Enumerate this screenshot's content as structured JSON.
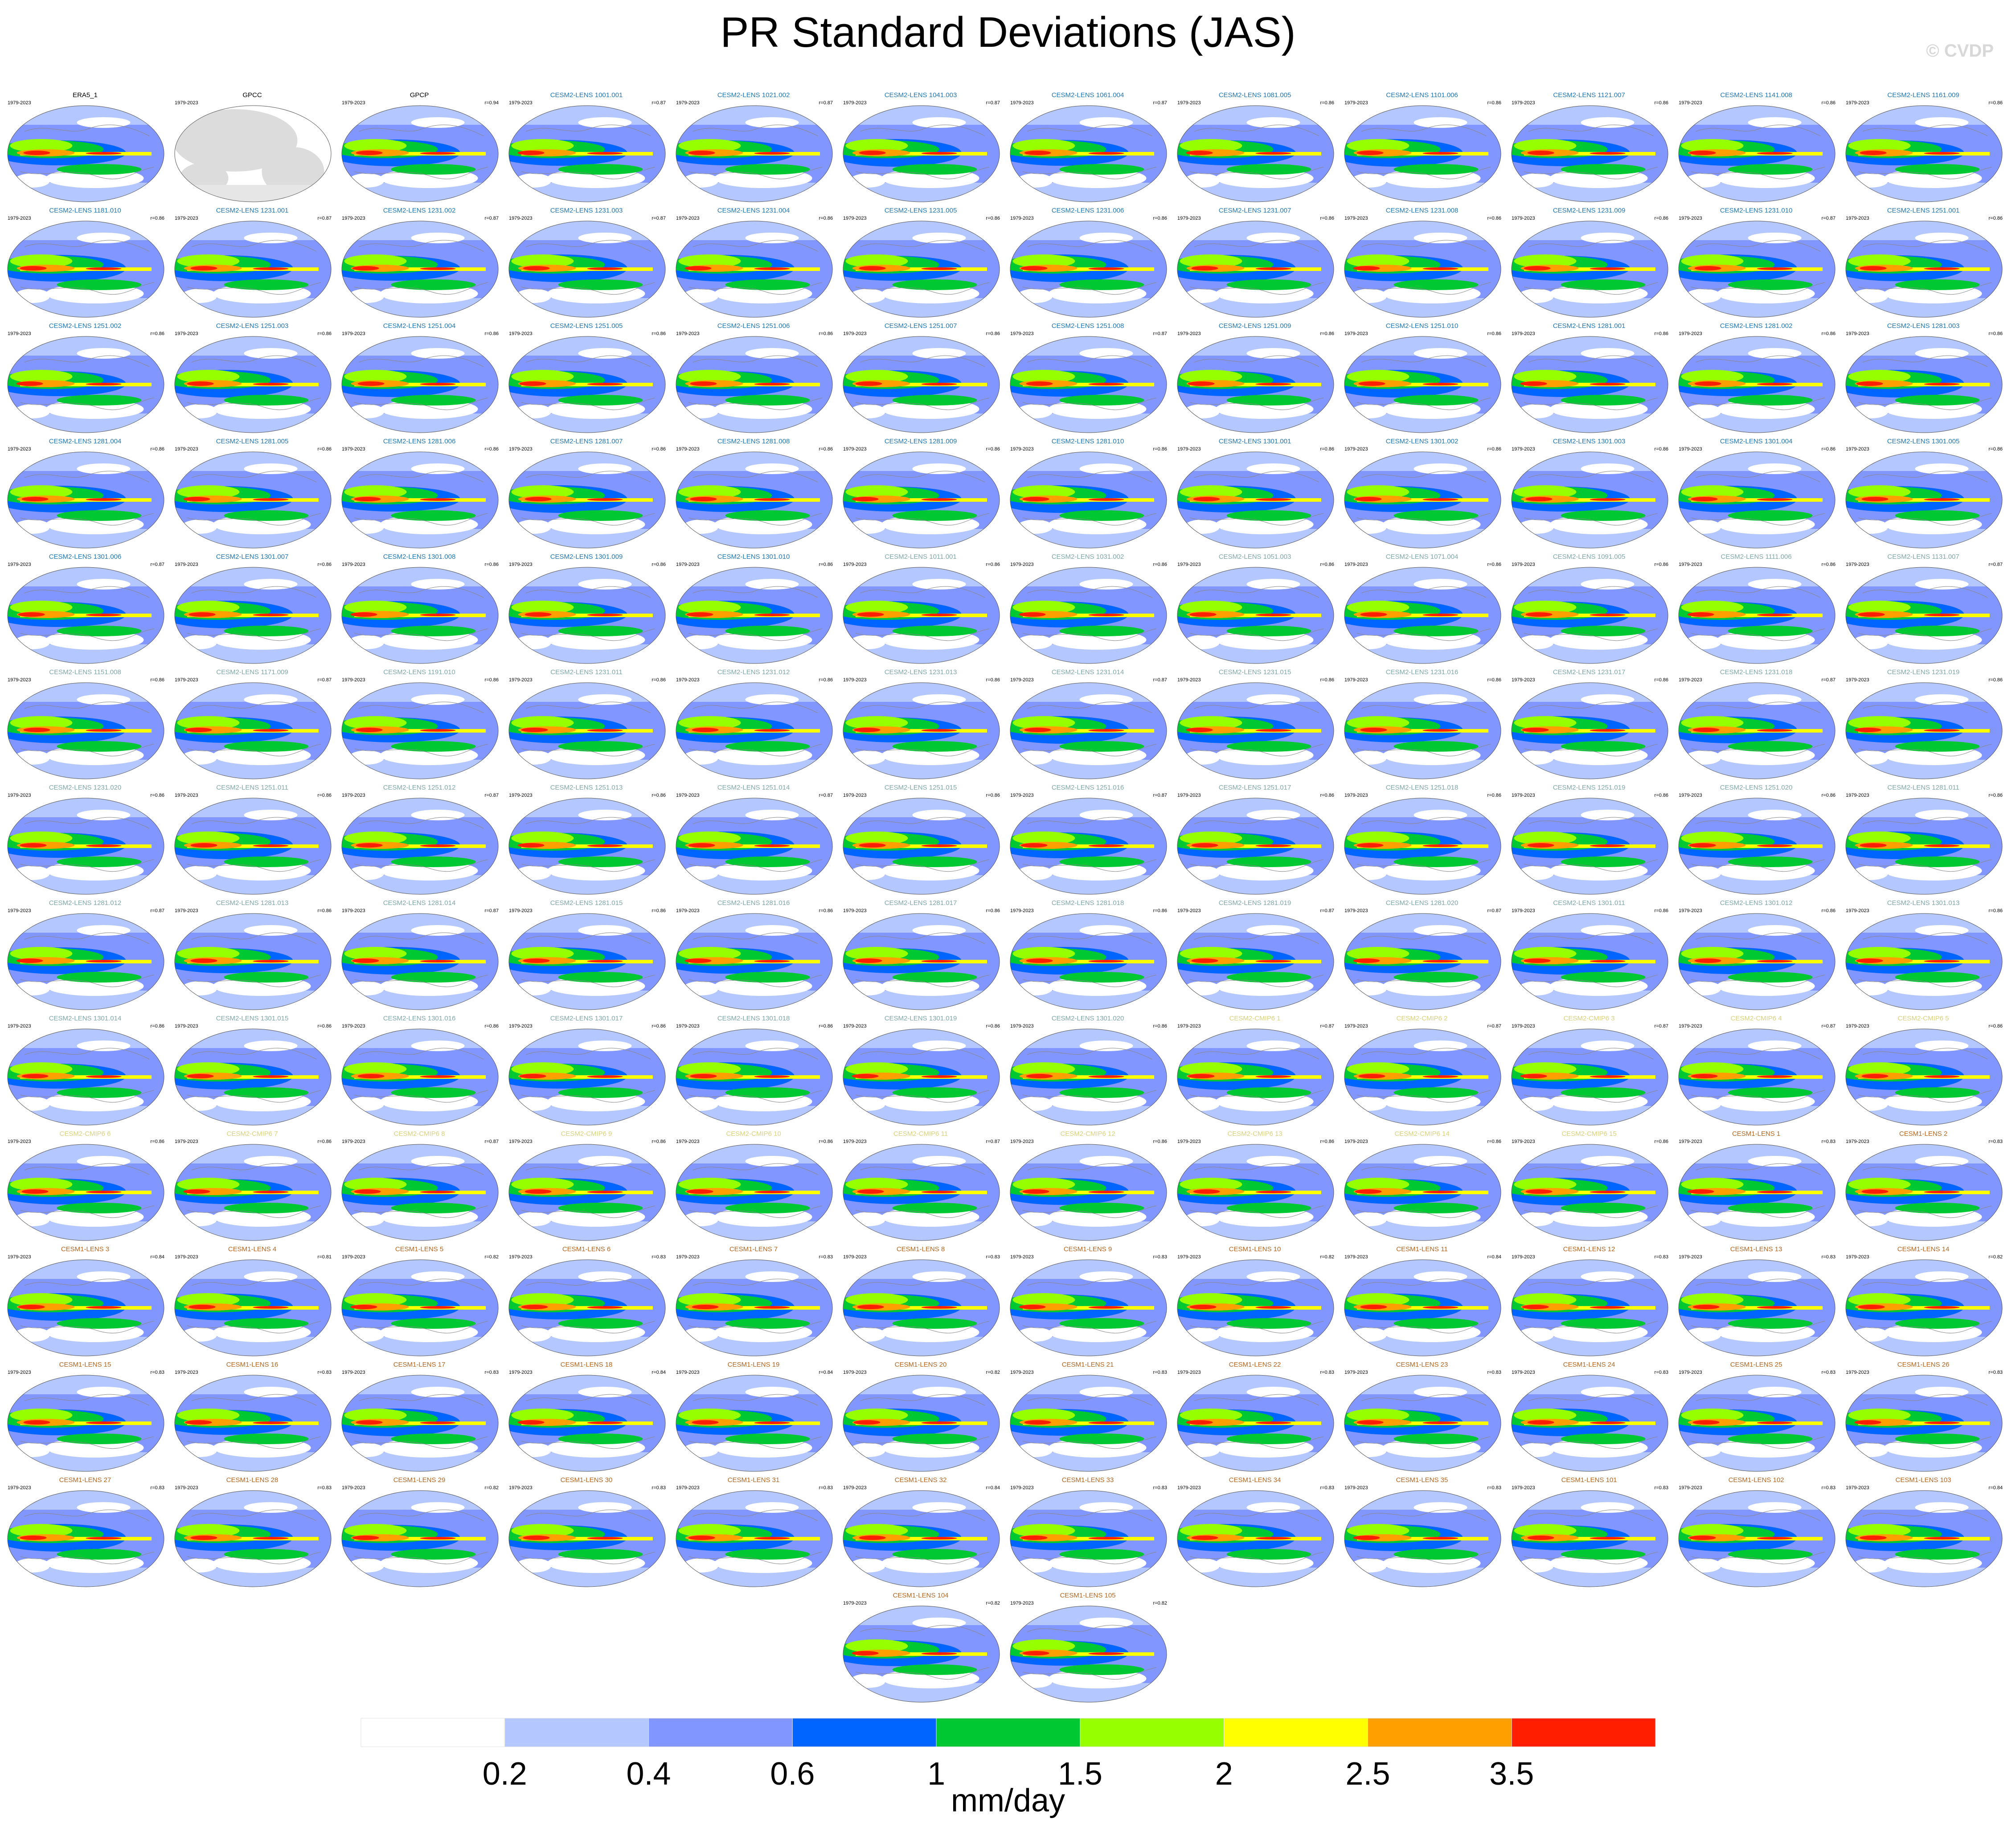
{
  "title": "PR Standard Deviations (JAS)",
  "watermark": "© CVDP",
  "chart_data": {
    "type": "heatmap",
    "title": "PR Standard Deviations (JAS)",
    "description_of_maps": "Global Robinson-projection maps of July-September precipitation standard deviation, one per dataset/ensemble member",
    "years": "1979-2023",
    "panels": [
      {
        "name": "ERA5_1",
        "r": "",
        "group": "obs"
      },
      {
        "name": "GPCC",
        "r": "",
        "group": "obs"
      },
      {
        "name": "GPCP",
        "r": "r=0.94",
        "group": "obs"
      },
      {
        "name": "CESM2-LENS 1001.001",
        "r": "r=0.87",
        "group": "cesm2"
      },
      {
        "name": "CESM2-LENS 1021.002",
        "r": "r=0.87",
        "group": "cesm2"
      },
      {
        "name": "CESM2-LENS 1041.003",
        "r": "r=0.87",
        "group": "cesm2"
      },
      {
        "name": "CESM2-LENS 1061.004",
        "r": "r=0.87",
        "group": "cesm2"
      },
      {
        "name": "CESM2-LENS 1081.005",
        "r": "r=0.86",
        "group": "cesm2"
      },
      {
        "name": "CESM2-LENS 1101.006",
        "r": "r=0.86",
        "group": "cesm2"
      },
      {
        "name": "CESM2-LENS 1121.007",
        "r": "r=0.86",
        "group": "cesm2"
      },
      {
        "name": "CESM2-LENS 1141.008",
        "r": "r=0.86",
        "group": "cesm2"
      },
      {
        "name": "CESM2-LENS 1161.009",
        "r": "r=0.86",
        "group": "cesm2"
      },
      {
        "name": "CESM2-LENS 1181.010",
        "r": "r=0.86",
        "group": "cesm2"
      },
      {
        "name": "CESM2-LENS 1231.001",
        "r": "r=0.87",
        "group": "cesm2"
      },
      {
        "name": "CESM2-LENS 1231.002",
        "r": "r=0.87",
        "group": "cesm2"
      },
      {
        "name": "CESM2-LENS 1231.003",
        "r": "r=0.87",
        "group": "cesm2"
      },
      {
        "name": "CESM2-LENS 1231.004",
        "r": "r=0.86",
        "group": "cesm2"
      },
      {
        "name": "CESM2-LENS 1231.005",
        "r": "r=0.86",
        "group": "cesm2"
      },
      {
        "name": "CESM2-LENS 1231.006",
        "r": "r=0.86",
        "group": "cesm2"
      },
      {
        "name": "CESM2-LENS 1231.007",
        "r": "r=0.86",
        "group": "cesm2"
      },
      {
        "name": "CESM2-LENS 1231.008",
        "r": "r=0.86",
        "group": "cesm2"
      },
      {
        "name": "CESM2-LENS 1231.009",
        "r": "r=0.86",
        "group": "cesm2"
      },
      {
        "name": "CESM2-LENS 1231.010",
        "r": "r=0.87",
        "group": "cesm2"
      },
      {
        "name": "CESM2-LENS 1251.001",
        "r": "r=0.86",
        "group": "cesm2"
      },
      {
        "name": "CESM2-LENS 1251.002",
        "r": "r=0.86",
        "group": "cesm2"
      },
      {
        "name": "CESM2-LENS 1251.003",
        "r": "r=0.86",
        "group": "cesm2"
      },
      {
        "name": "CESM2-LENS 1251.004",
        "r": "r=0.86",
        "group": "cesm2"
      },
      {
        "name": "CESM2-LENS 1251.005",
        "r": "r=0.86",
        "group": "cesm2"
      },
      {
        "name": "CESM2-LENS 1251.006",
        "r": "r=0.86",
        "group": "cesm2"
      },
      {
        "name": "CESM2-LENS 1251.007",
        "r": "r=0.86",
        "group": "cesm2"
      },
      {
        "name": "CESM2-LENS 1251.008",
        "r": "r=0.87",
        "group": "cesm2"
      },
      {
        "name": "CESM2-LENS 1251.009",
        "r": "r=0.86",
        "group": "cesm2"
      },
      {
        "name": "CESM2-LENS 1251.010",
        "r": "r=0.86",
        "group": "cesm2"
      },
      {
        "name": "CESM2-LENS 1281.001",
        "r": "r=0.86",
        "group": "cesm2"
      },
      {
        "name": "CESM2-LENS 1281.002",
        "r": "r=0.86",
        "group": "cesm2"
      },
      {
        "name": "CESM2-LENS 1281.003",
        "r": "r=0.86",
        "group": "cesm2"
      },
      {
        "name": "CESM2-LENS 1281.004",
        "r": "r=0.86",
        "group": "cesm2"
      },
      {
        "name": "CESM2-LENS 1281.005",
        "r": "r=0.86",
        "group": "cesm2"
      },
      {
        "name": "CESM2-LENS 1281.006",
        "r": "r=0.86",
        "group": "cesm2"
      },
      {
        "name": "CESM2-LENS 1281.007",
        "r": "r=0.86",
        "group": "cesm2"
      },
      {
        "name": "CESM2-LENS 1281.008",
        "r": "r=0.86",
        "group": "cesm2"
      },
      {
        "name": "CESM2-LENS 1281.009",
        "r": "r=0.86",
        "group": "cesm2"
      },
      {
        "name": "CESM2-LENS 1281.010",
        "r": "r=0.86",
        "group": "cesm2"
      },
      {
        "name": "CESM2-LENS 1301.001",
        "r": "r=0.86",
        "group": "cesm2"
      },
      {
        "name": "CESM2-LENS 1301.002",
        "r": "r=0.86",
        "group": "cesm2"
      },
      {
        "name": "CESM2-LENS 1301.003",
        "r": "r=0.86",
        "group": "cesm2"
      },
      {
        "name": "CESM2-LENS 1301.004",
        "r": "r=0.86",
        "group": "cesm2"
      },
      {
        "name": "CESM2-LENS 1301.005",
        "r": "r=0.86",
        "group": "cesm2"
      },
      {
        "name": "CESM2-LENS 1301.006",
        "r": "r=0.87",
        "group": "cesm2"
      },
      {
        "name": "CESM2-LENS 1301.007",
        "r": "r=0.86",
        "group": "cesm2"
      },
      {
        "name": "CESM2-LENS 1301.008",
        "r": "r=0.86",
        "group": "cesm2"
      },
      {
        "name": "CESM2-LENS 1301.009",
        "r": "r=0.86",
        "group": "cesm2"
      },
      {
        "name": "CESM2-LENS 1301.010",
        "r": "r=0.86",
        "group": "cesm2"
      },
      {
        "name": "CESM2-LENS 1011.001",
        "r": "r=0.86",
        "group": "cesm2b"
      },
      {
        "name": "CESM2-LENS 1031.002",
        "r": "r=0.86",
        "group": "cesm2b"
      },
      {
        "name": "CESM2-LENS 1051.003",
        "r": "r=0.86",
        "group": "cesm2b"
      },
      {
        "name": "CESM2-LENS 1071.004",
        "r": "r=0.86",
        "group": "cesm2b"
      },
      {
        "name": "CESM2-LENS 1091.005",
        "r": "r=0.86",
        "group": "cesm2b"
      },
      {
        "name": "CESM2-LENS 1111.006",
        "r": "r=0.86",
        "group": "cesm2b"
      },
      {
        "name": "CESM2-LENS 1131.007",
        "r": "r=0.87",
        "group": "cesm2b"
      },
      {
        "name": "CESM2-LENS 1151.008",
        "r": "r=0.86",
        "group": "cesm2b"
      },
      {
        "name": "CESM2-LENS 1171.009",
        "r": "r=0.87",
        "group": "cesm2b"
      },
      {
        "name": "CESM2-LENS 1191.010",
        "r": "r=0.86",
        "group": "cesm2b"
      },
      {
        "name": "CESM2-LENS 1231.011",
        "r": "r=0.86",
        "group": "cesm2b"
      },
      {
        "name": "CESM2-LENS 1231.012",
        "r": "r=0.86",
        "group": "cesm2b"
      },
      {
        "name": "CESM2-LENS 1231.013",
        "r": "r=0.86",
        "group": "cesm2b"
      },
      {
        "name": "CESM2-LENS 1231.014",
        "r": "r=0.87",
        "group": "cesm2b"
      },
      {
        "name": "CESM2-LENS 1231.015",
        "r": "r=0.86",
        "group": "cesm2b"
      },
      {
        "name": "CESM2-LENS 1231.016",
        "r": "r=0.86",
        "group": "cesm2b"
      },
      {
        "name": "CESM2-LENS 1231.017",
        "r": "r=0.86",
        "group": "cesm2b"
      },
      {
        "name": "CESM2-LENS 1231.018",
        "r": "r=0.87",
        "group": "cesm2b"
      },
      {
        "name": "CESM2-LENS 1231.019",
        "r": "r=0.86",
        "group": "cesm2b"
      },
      {
        "name": "CESM2-LENS 1231.020",
        "r": "r=0.86",
        "group": "cesm2b"
      },
      {
        "name": "CESM2-LENS 1251.011",
        "r": "r=0.86",
        "group": "cesm2b"
      },
      {
        "name": "CESM2-LENS 1251.012",
        "r": "r=0.87",
        "group": "cesm2b"
      },
      {
        "name": "CESM2-LENS 1251.013",
        "r": "r=0.86",
        "group": "cesm2b"
      },
      {
        "name": "CESM2-LENS 1251.014",
        "r": "r=0.87",
        "group": "cesm2b"
      },
      {
        "name": "CESM2-LENS 1251.015",
        "r": "r=0.86",
        "group": "cesm2b"
      },
      {
        "name": "CESM2-LENS 1251.016",
        "r": "r=0.87",
        "group": "cesm2b"
      },
      {
        "name": "CESM2-LENS 1251.017",
        "r": "r=0.86",
        "group": "cesm2b"
      },
      {
        "name": "CESM2-LENS 1251.018",
        "r": "r=0.86",
        "group": "cesm2b"
      },
      {
        "name": "CESM2-LENS 1251.019",
        "r": "r=0.86",
        "group": "cesm2b"
      },
      {
        "name": "CESM2-LENS 1251.020",
        "r": "r=0.86",
        "group": "cesm2b"
      },
      {
        "name": "CESM2-LENS 1281.011",
        "r": "r=0.86",
        "group": "cesm2b"
      },
      {
        "name": "CESM2-LENS 1281.012",
        "r": "r=0.87",
        "group": "cesm2b"
      },
      {
        "name": "CESM2-LENS 1281.013",
        "r": "r=0.86",
        "group": "cesm2b"
      },
      {
        "name": "CESM2-LENS 1281.014",
        "r": "r=0.87",
        "group": "cesm2b"
      },
      {
        "name": "CESM2-LENS 1281.015",
        "r": "r=0.86",
        "group": "cesm2b"
      },
      {
        "name": "CESM2-LENS 1281.016",
        "r": "r=0.86",
        "group": "cesm2b"
      },
      {
        "name": "CESM2-LENS 1281.017",
        "r": "r=0.86",
        "group": "cesm2b"
      },
      {
        "name": "CESM2-LENS 1281.018",
        "r": "r=0.86",
        "group": "cesm2b"
      },
      {
        "name": "CESM2-LENS 1281.019",
        "r": "r=0.87",
        "group": "cesm2b"
      },
      {
        "name": "CESM2-LENS 1281.020",
        "r": "r=0.87",
        "group": "cesm2b"
      },
      {
        "name": "CESM2-LENS 1301.011",
        "r": "r=0.86",
        "group": "cesm2b"
      },
      {
        "name": "CESM2-LENS 1301.012",
        "r": "r=0.86",
        "group": "cesm2b"
      },
      {
        "name": "CESM2-LENS 1301.013",
        "r": "r=0.86",
        "group": "cesm2b"
      },
      {
        "name": "CESM2-LENS 1301.014",
        "r": "r=0.86",
        "group": "cesm2b"
      },
      {
        "name": "CESM2-LENS 1301.015",
        "r": "r=0.86",
        "group": "cesm2b"
      },
      {
        "name": "CESM2-LENS 1301.016",
        "r": "r=0.86",
        "group": "cesm2b"
      },
      {
        "name": "CESM2-LENS 1301.017",
        "r": "r=0.86",
        "group": "cesm2b"
      },
      {
        "name": "CESM2-LENS 1301.018",
        "r": "r=0.86",
        "group": "cesm2b"
      },
      {
        "name": "CESM2-LENS 1301.019",
        "r": "r=0.86",
        "group": "cesm2b"
      },
      {
        "name": "CESM2-LENS 1301.020",
        "r": "r=0.86",
        "group": "cesm2b"
      },
      {
        "name": "CESM2-CMIP6 1",
        "r": "r=0.87",
        "group": "cmip6"
      },
      {
        "name": "CESM2-CMIP6 2",
        "r": "r=0.87",
        "group": "cmip6"
      },
      {
        "name": "CESM2-CMIP6 3",
        "r": "r=0.87",
        "group": "cmip6"
      },
      {
        "name": "CESM2-CMIP6 4",
        "r": "r=0.87",
        "group": "cmip6"
      },
      {
        "name": "CESM2-CMIP6 5",
        "r": "r=0.86",
        "group": "cmip6"
      },
      {
        "name": "CESM2-CMIP6 6",
        "r": "r=0.86",
        "group": "cmip6"
      },
      {
        "name": "CESM2-CMIP6 7",
        "r": "r=0.86",
        "group": "cmip6"
      },
      {
        "name": "CESM2-CMIP6 8",
        "r": "r=0.87",
        "group": "cmip6"
      },
      {
        "name": "CESM2-CMIP6 9",
        "r": "r=0.86",
        "group": "cmip6"
      },
      {
        "name": "CESM2-CMIP6 10",
        "r": "r=0.86",
        "group": "cmip6"
      },
      {
        "name": "CESM2-CMIP6 11",
        "r": "r=0.87",
        "group": "cmip6"
      },
      {
        "name": "CESM2-CMIP6 12",
        "r": "r=0.86",
        "group": "cmip6"
      },
      {
        "name": "CESM2-CMIP6 13",
        "r": "r=0.86",
        "group": "cmip6"
      },
      {
        "name": "CESM2-CMIP6 14",
        "r": "r=0.86",
        "group": "cmip6"
      },
      {
        "name": "CESM2-CMIP6 15",
        "r": "r=0.86",
        "group": "cmip6"
      },
      {
        "name": "CESM1-LENS 1",
        "r": "r=0.83",
        "group": "cesm1"
      },
      {
        "name": "CESM1-LENS 2",
        "r": "r=0.83",
        "group": "cesm1"
      },
      {
        "name": "CESM1-LENS 3",
        "r": "r=0.84",
        "group": "cesm1"
      },
      {
        "name": "CESM1-LENS 4",
        "r": "r=0.81",
        "group": "cesm1"
      },
      {
        "name": "CESM1-LENS 5",
        "r": "r=0.82",
        "group": "cesm1"
      },
      {
        "name": "CESM1-LENS 6",
        "r": "r=0.83",
        "group": "cesm1"
      },
      {
        "name": "CESM1-LENS 7",
        "r": "r=0.83",
        "group": "cesm1"
      },
      {
        "name": "CESM1-LENS 8",
        "r": "r=0.83",
        "group": "cesm1"
      },
      {
        "name": "CESM1-LENS 9",
        "r": "r=0.83",
        "group": "cesm1"
      },
      {
        "name": "CESM1-LENS 10",
        "r": "r=0.82",
        "group": "cesm1"
      },
      {
        "name": "CESM1-LENS 11",
        "r": "r=0.84",
        "group": "cesm1"
      },
      {
        "name": "CESM1-LENS 12",
        "r": "r=0.83",
        "group": "cesm1"
      },
      {
        "name": "CESM1-LENS 13",
        "r": "r=0.83",
        "group": "cesm1"
      },
      {
        "name": "CESM1-LENS 14",
        "r": "r=0.82",
        "group": "cesm1"
      },
      {
        "name": "CESM1-LENS 15",
        "r": "r=0.83",
        "group": "cesm1"
      },
      {
        "name": "CESM1-LENS 16",
        "r": "r=0.83",
        "group": "cesm1"
      },
      {
        "name": "CESM1-LENS 17",
        "r": "r=0.83",
        "group": "cesm1"
      },
      {
        "name": "CESM1-LENS 18",
        "r": "r=0.84",
        "group": "cesm1"
      },
      {
        "name": "CESM1-LENS 19",
        "r": "r=0.84",
        "group": "cesm1"
      },
      {
        "name": "CESM1-LENS 20",
        "r": "r=0.82",
        "group": "cesm1"
      },
      {
        "name": "CESM1-LENS 21",
        "r": "r=0.83",
        "group": "cesm1"
      },
      {
        "name": "CESM1-LENS 22",
        "r": "r=0.83",
        "group": "cesm1"
      },
      {
        "name": "CESM1-LENS 23",
        "r": "r=0.83",
        "group": "cesm1"
      },
      {
        "name": "CESM1-LENS 24",
        "r": "r=0.83",
        "group": "cesm1"
      },
      {
        "name": "CESM1-LENS 25",
        "r": "r=0.83",
        "group": "cesm1"
      },
      {
        "name": "CESM1-LENS 26",
        "r": "r=0.83",
        "group": "cesm1"
      },
      {
        "name": "CESM1-LENS 27",
        "r": "r=0.83",
        "group": "cesm1"
      },
      {
        "name": "CESM1-LENS 28",
        "r": "r=0.83",
        "group": "cesm1"
      },
      {
        "name": "CESM1-LENS 29",
        "r": "r=0.82",
        "group": "cesm1"
      },
      {
        "name": "CESM1-LENS 30",
        "r": "r=0.83",
        "group": "cesm1"
      },
      {
        "name": "CESM1-LENS 31",
        "r": "r=0.83",
        "group": "cesm1"
      },
      {
        "name": "CESM1-LENS 32",
        "r": "r=0.84",
        "group": "cesm1"
      },
      {
        "name": "CESM1-LENS 33",
        "r": "r=0.83",
        "group": "cesm1"
      },
      {
        "name": "CESM1-LENS 34",
        "r": "r=0.83",
        "group": "cesm1"
      },
      {
        "name": "CESM1-LENS 35",
        "r": "r=0.83",
        "group": "cesm1"
      },
      {
        "name": "CESM1-LENS 101",
        "r": "r=0.83",
        "group": "cesm1"
      },
      {
        "name": "CESM1-LENS 102",
        "r": "r=0.83",
        "group": "cesm1"
      },
      {
        "name": "CESM1-LENS 103",
        "r": "r=0.84",
        "group": "cesm1"
      },
      {
        "name": "CESM1-LENS 104",
        "r": "r=0.82",
        "group": "cesm1"
      },
      {
        "name": "CESM1-LENS 105",
        "r": "r=0.82",
        "group": "cesm1"
      }
    ],
    "group_colors": {
      "obs": "#000000",
      "cesm2": "#1f77b4",
      "cesm2b": "#7fa7a7",
      "cmip6": "#d8d27a",
      "cesm1": "#b5651d"
    },
    "colorbar": {
      "levels": [
        "0.2",
        "0.4",
        "0.6",
        "1",
        "1.5",
        "2",
        "2.5",
        "3.5"
      ],
      "colors": [
        "#ffffff",
        "#b4c8ff",
        "#8296ff",
        "#0064ff",
        "#00c832",
        "#96ff00",
        "#ffff00",
        "#ffa000",
        "#ff1e00"
      ],
      "units": "mm/day"
    }
  }
}
